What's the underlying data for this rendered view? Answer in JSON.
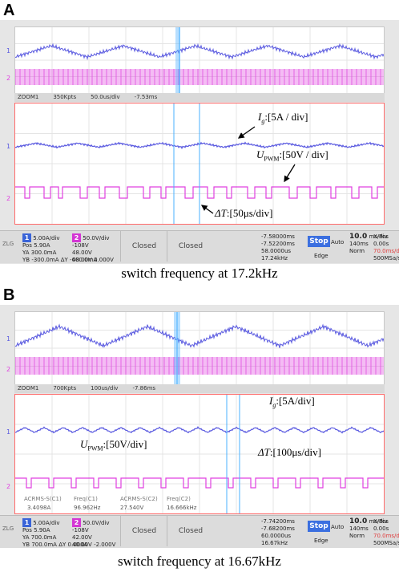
{
  "panels": [
    {
      "letter": "A",
      "zoom_bar": {
        "label": "ZOOM1",
        "pts": "350Kpts",
        "timebase": "50.0us/div",
        "offset": "-7.53ms"
      },
      "ch1_marker": "1",
      "ch2_marker": "2",
      "annotations": {
        "ig": "I",
        "ig_sub": "g",
        "ig_value": ":[5A / div]",
        "upwm": "U",
        "upwm_sub": "PWM",
        "upwm_value": ":[50V / div]",
        "dt": "ΔT",
        "dt_value": ":[50μs/div]"
      },
      "status": {
        "ch1": {
          "badge": "1",
          "scale": "5.00A/div",
          "pos_label": "Pos",
          "pos": "5.90A",
          "ya_label": "YA",
          "ya": "300.0mA",
          "yb_label": "YB",
          "yb": "-300.0mA",
          "dy_label": "ΔY",
          "dy": "-600.0mA"
        },
        "ch2": {
          "badge": "2",
          "scale": "50.0V/div",
          "pos": "-108V",
          "ya": "48.00V",
          "yb": "48.00V",
          "dy": "0.000V"
        },
        "closed_1": "Closed",
        "closed_2": "Closed",
        "xa": "-7.58000ms",
        "xb": "-7.52200ms",
        "dx": "58.0000us",
        "inv_dx": "17.24kHz",
        "stop": "Stop",
        "mode": "Auto",
        "trig": "Edge",
        "timebase": "10.0",
        "timebase_unit": "ms/div",
        "rec_len": "140ms",
        "xpos_label": "X-Pos",
        "xpos": "0.00s",
        "xdiv": "70.0ms/div",
        "norm": "Norm",
        "rate": "500MSa/s"
      },
      "caption": "switch frequency at 17.2kHz"
    },
    {
      "letter": "B",
      "zoom_bar": {
        "label": "ZOOM1",
        "pts": "700Kpts",
        "timebase": "100us/div",
        "offset": "-7.86ms"
      },
      "ch1_marker": "1",
      "ch2_marker": "2",
      "annotations": {
        "ig": "I",
        "ig_sub": "g",
        "ig_value": ":[5A/div]",
        "upwm": "U",
        "upwm_sub": "PWM",
        "upwm_value": ":[50V/div]",
        "dt": "ΔT",
        "dt_value": ":[100μs/div]"
      },
      "measurements": {
        "labels": [
          "ACRMS-S(C1)",
          "Freq(C1)",
          "ACRMS-S(C2)",
          "Freq(C2)"
        ],
        "values": [
          "3.4098A",
          "96.962Hz",
          "27.540V",
          "16.666kHz"
        ]
      },
      "status": {
        "ch1": {
          "badge": "1",
          "scale": "5.00A/div",
          "pos_label": "Pos",
          "pos": "5.90A",
          "ya_label": "YA",
          "ya": "700.0mA",
          "yb_label": "YB",
          "yb": "700.0mA",
          "dy_label": "ΔY",
          "dy": "0.000A"
        },
        "ch2": {
          "badge": "2",
          "scale": "50.0V/div",
          "pos": "-108V",
          "ya": "42.00V",
          "yb": "40.00V",
          "dy": "-2.000V"
        },
        "closed_1": "Closed",
        "closed_2": "Closed",
        "xa": "-7.74200ms",
        "xb": "-7.68200ms",
        "dx": "60.0000us",
        "inv_dx": "16.67kHz",
        "stop": "Stop",
        "mode": "Auto",
        "trig": "Edge",
        "timebase": "10.0",
        "timebase_unit": "ms/div",
        "rec_len": "140ms",
        "xpos_label": "X-Pos",
        "xpos": "0.00s",
        "xdiv": "70.0ms/div",
        "norm": "Norm",
        "rate": "500MSa/s"
      },
      "caption": "switch frequency at 16.67kHz"
    }
  ],
  "colors": {
    "ch1": "#5a5ae0",
    "ch2": "#e040e0",
    "cursor": "#4ab0ff",
    "zoom_border": "#ff6a6a"
  }
}
